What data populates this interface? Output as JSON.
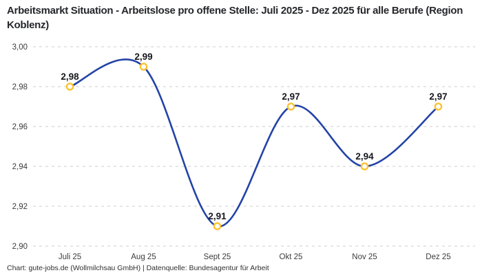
{
  "header": {
    "title": "Arbeitsmarkt Situation - Arbeitslose pro offene Stelle: Juli 2025 - Dez 2025 für alle Berufe (Region Koblenz)"
  },
  "footer": {
    "attribution": "Chart: gute-jobs.de (Wollmilchsau GmbH) | Datenquelle: Bundesagentur für Arbeit"
  },
  "chart_data": {
    "type": "line",
    "title": "Arbeitsmarkt Situation - Arbeitslose pro offene Stelle: Juli 2025 - Dez 2025 für alle Berufe (Region Koblenz)",
    "categories": [
      "Juli 25",
      "Aug 25",
      "Sept 25",
      "Okt 25",
      "Nov 25",
      "Dez 25"
    ],
    "values": [
      2.98,
      2.99,
      2.91,
      2.97,
      2.94,
      2.97
    ],
    "value_labels": [
      "2,98",
      "2,99",
      "2,91",
      "2,97",
      "2,94",
      "2,97"
    ],
    "xlabel": "",
    "ylabel": "",
    "ylim": [
      2.9,
      3.0
    ],
    "y_ticks": [
      {
        "value": 3.0,
        "label": "3,00"
      },
      {
        "value": 2.98,
        "label": "2,98"
      },
      {
        "value": 2.96,
        "label": "2,96"
      },
      {
        "value": 2.94,
        "label": "2,94"
      },
      {
        "value": 2.92,
        "label": "2,92"
      },
      {
        "value": 2.9,
        "label": "2,90"
      }
    ],
    "grid": "horizontal-dashed",
    "legend": "none",
    "curve": "smooth-spline",
    "colors": {
      "line": "#2343a7",
      "marker_stroke": "#fcc330",
      "marker_fill": "#ffffff",
      "grid": "#cdcdcd",
      "point_label": "#16181e",
      "tick_label": "#3b3b3b"
    }
  }
}
